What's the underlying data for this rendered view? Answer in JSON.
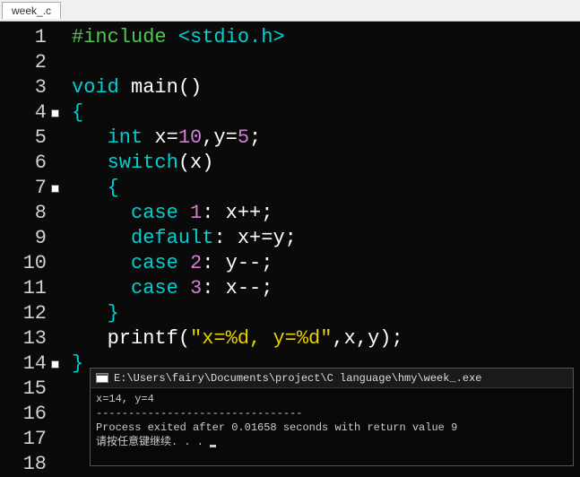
{
  "tab": {
    "label": "week_.c"
  },
  "editor": {
    "background_color": "#0a0a0a",
    "gutter_color": "#d0d0d0",
    "font_size": 22,
    "line_height": 28,
    "colors": {
      "preproc": "#4ec950",
      "preproc_arg": "#00d0d0",
      "keyword": "#00d0d0",
      "identifier": "#ffffff",
      "punct": "#ffffff",
      "brace": "#00d0d0",
      "number": "#d080d0",
      "string": "#e6d000"
    },
    "lines": [
      {
        "num": "1",
        "tokens": [
          [
            "c-preproc",
            "#include "
          ],
          [
            "c-preproc-arg",
            "<stdio.h>"
          ]
        ]
      },
      {
        "num": "2",
        "tokens": []
      },
      {
        "num": "3",
        "tokens": [
          [
            "c-keyword",
            "void"
          ],
          [
            "c-punct",
            " "
          ],
          [
            "c-ident",
            "main"
          ],
          [
            "c-punct",
            "()"
          ]
        ]
      },
      {
        "num": "4",
        "tokens": [
          [
            "c-brace",
            "{"
          ]
        ],
        "fold": true
      },
      {
        "num": "5",
        "tokens": [
          [
            "c-punct",
            "   "
          ],
          [
            "c-type",
            "int"
          ],
          [
            "c-punct",
            " x="
          ],
          [
            "c-number",
            "10"
          ],
          [
            "c-punct",
            ",y="
          ],
          [
            "c-number",
            "5"
          ],
          [
            "c-punct",
            ";"
          ]
        ]
      },
      {
        "num": "6",
        "tokens": [
          [
            "c-punct",
            "   "
          ],
          [
            "c-keyword",
            "switch"
          ],
          [
            "c-punct",
            "(x)"
          ]
        ]
      },
      {
        "num": "7",
        "tokens": [
          [
            "c-punct",
            "   "
          ],
          [
            "c-brace",
            "{"
          ]
        ],
        "fold": true
      },
      {
        "num": "8",
        "tokens": [
          [
            "c-punct",
            "     "
          ],
          [
            "c-label",
            "case"
          ],
          [
            "c-punct",
            " "
          ],
          [
            "c-number",
            "1"
          ],
          [
            "c-punct",
            ": x++;"
          ]
        ]
      },
      {
        "num": "9",
        "tokens": [
          [
            "c-punct",
            "     "
          ],
          [
            "c-label",
            "default"
          ],
          [
            "c-punct",
            ": x+=y;"
          ]
        ]
      },
      {
        "num": "10",
        "tokens": [
          [
            "c-punct",
            "     "
          ],
          [
            "c-label",
            "case"
          ],
          [
            "c-punct",
            " "
          ],
          [
            "c-number",
            "2"
          ],
          [
            "c-punct",
            ": y--;"
          ]
        ]
      },
      {
        "num": "11",
        "tokens": [
          [
            "c-punct",
            "     "
          ],
          [
            "c-label",
            "case"
          ],
          [
            "c-punct",
            " "
          ],
          [
            "c-number",
            "3"
          ],
          [
            "c-punct",
            ": x--;"
          ]
        ]
      },
      {
        "num": "12",
        "tokens": [
          [
            "c-punct",
            "   "
          ],
          [
            "c-brace",
            "}"
          ]
        ]
      },
      {
        "num": "13",
        "tokens": [
          [
            "c-punct",
            "   "
          ],
          [
            "c-ident",
            "printf"
          ],
          [
            "c-punct",
            "("
          ],
          [
            "c-string",
            "\"x=%d, y=%d\""
          ],
          [
            "c-punct",
            ",x,y);"
          ]
        ]
      },
      {
        "num": "14",
        "tokens": [
          [
            "c-brace",
            "}"
          ]
        ],
        "fold": true
      },
      {
        "num": "15",
        "tokens": []
      },
      {
        "num": "16",
        "tokens": []
      },
      {
        "num": "17",
        "tokens": []
      },
      {
        "num": "18",
        "tokens": []
      }
    ]
  },
  "console": {
    "title": "E:\\Users\\fairy\\Documents\\project\\C language\\hmy\\week_.exe",
    "output_line": "x=14, y=4",
    "hr": "--------------------------------",
    "exit_line": "Process exited after 0.01658 seconds with return value 9",
    "prompt_line": "请按任意键继续. . . "
  }
}
